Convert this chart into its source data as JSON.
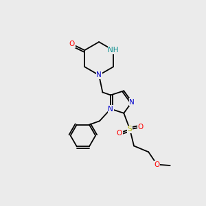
{
  "bg_color": "#ebebeb",
  "bond_color": "#000000",
  "atom_colors": {
    "N": "#0000cd",
    "NH": "#008b8b",
    "O": "#ff0000",
    "S": "#b8b800",
    "C": "#000000"
  },
  "lw": 1.3,
  "fs": 7.5
}
